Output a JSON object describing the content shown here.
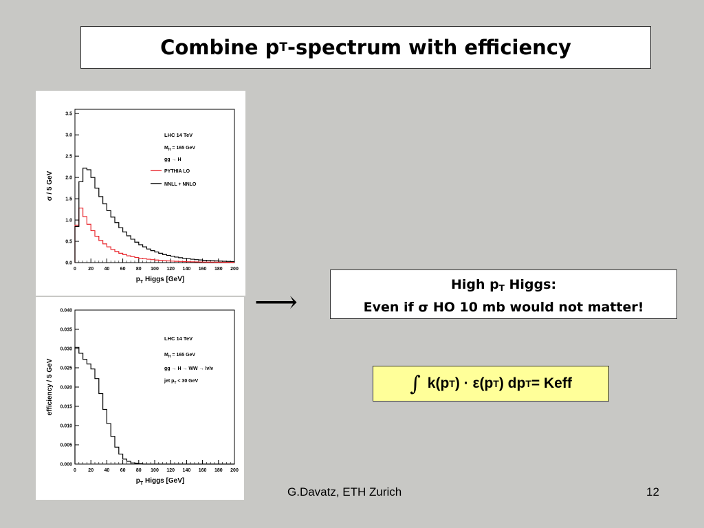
{
  "slide": {
    "title_main": "Combine p",
    "title_sub": "T",
    "title_rest": "-spectrum with efficiency",
    "arrow": "⟶",
    "note_line1_a": "High p",
    "note_line1_sub": "T",
    "note_line1_b": " Higgs:",
    "note_line2_a": "Even if ",
    "note_line2_sigma": "σ",
    "note_line2_b": " HO 10 mb would not matter!",
    "formula": {
      "integral": "∫",
      "k": "k(p",
      "sub1": "T",
      "mid": ") · ε(p",
      "sub2": "T",
      "end": ") dp",
      "sub3": "T",
      "eq": " = K",
      "sub4": "eff"
    },
    "footer_author": "G.Davatz, ETH Zurich",
    "footer_page": "12"
  },
  "colors": {
    "pythia": "#e8252b",
    "nnll": "#000000",
    "formula_bg": "#ffff99"
  },
  "chart_data": [
    {
      "type": "line",
      "xlabel_main": "p",
      "xlabel_sub": "T",
      "xlabel_rest": " Higgs [GeV]",
      "ylabel": "σ / 5 GeV",
      "xlim": [
        0,
        200
      ],
      "ylim": [
        0,
        3.6
      ],
      "x_ticks": [
        "0",
        "20",
        "40",
        "60",
        "80",
        "100",
        "120",
        "140",
        "160",
        "180",
        "200"
      ],
      "y_ticks": [
        "0.0",
        "0.5",
        "1.0",
        "1.5",
        "2.0",
        "2.5",
        "3.0",
        "3.5"
      ],
      "annotations": [
        "LHC 14 TeV",
        "M",
        "H",
        " = 165 GeV",
        "gg → H"
      ],
      "legend": [
        "PYTHIA LO",
        "NNLL + NNLO"
      ],
      "legend_position": "top-right",
      "bin_width": 5,
      "series": [
        {
          "name": "PYTHIA LO",
          "color": "#e8252b",
          "values": [
            0.88,
            1.28,
            1.08,
            0.9,
            0.75,
            0.62,
            0.52,
            0.44,
            0.37,
            0.31,
            0.26,
            0.22,
            0.19,
            0.16,
            0.14,
            0.12,
            0.1,
            0.09,
            0.08,
            0.07,
            0.06,
            0.05,
            0.045,
            0.04,
            0.035,
            0.03,
            0.027,
            0.024,
            0.021,
            0.019,
            0.017,
            0.015,
            0.013,
            0.012,
            0.011,
            0.01,
            0.009,
            0.008,
            0.007,
            0.006
          ]
        },
        {
          "name": "NNLL + NNLO",
          "color": "#000000",
          "values": [
            0.85,
            1.9,
            2.22,
            2.18,
            2.0,
            1.75,
            1.55,
            1.38,
            1.22,
            1.07,
            0.94,
            0.82,
            0.72,
            0.63,
            0.55,
            0.48,
            0.42,
            0.37,
            0.32,
            0.28,
            0.25,
            0.22,
            0.19,
            0.17,
            0.15,
            0.13,
            0.115,
            0.1,
            0.09,
            0.08,
            0.07,
            0.062,
            0.055,
            0.05,
            0.045,
            0.04,
            0.036,
            0.032,
            0.028,
            0.025
          ]
        }
      ]
    },
    {
      "type": "line",
      "xlabel_main": "p",
      "xlabel_sub": "T",
      "xlabel_rest": " Higgs [GeV]",
      "ylabel": "efficiency / 5 GeV",
      "xlim": [
        0,
        200
      ],
      "ylim": [
        0,
        0.04
      ],
      "x_ticks": [
        "0",
        "20",
        "40",
        "60",
        "80",
        "100",
        "120",
        "140",
        "160",
        "180",
        "200"
      ],
      "y_ticks": [
        "0.000",
        "0.005",
        "0.010",
        "0.015",
        "0.020",
        "0.025",
        "0.030",
        "0.035",
        "0.040"
      ],
      "annotations": [
        "LHC 14 TeV",
        "M",
        "H",
        " = 165 GeV",
        "gg → H → WW → lνlν",
        "jet p",
        "T",
        " < 30 GeV"
      ],
      "bin_width": 5,
      "series": [
        {
          "name": "",
          "color": "#000000",
          "values": [
            0.0303,
            0.0288,
            0.0272,
            0.026,
            0.0247,
            0.0222,
            0.0183,
            0.0142,
            0.0105,
            0.0072,
            0.0044,
            0.0026,
            0.0013,
            0.0007,
            0.0003,
            0.0002,
            0.0001,
            0.0,
            0.0,
            0.0,
            0.0,
            0.0,
            0.0,
            0.0,
            0.0,
            0.0,
            0.0,
            0.0,
            0.0,
            0.0,
            0.0,
            0.0,
            0.0,
            0.0,
            0.0,
            0.0,
            0.0,
            0.0,
            0.0,
            0.0
          ]
        }
      ]
    }
  ]
}
